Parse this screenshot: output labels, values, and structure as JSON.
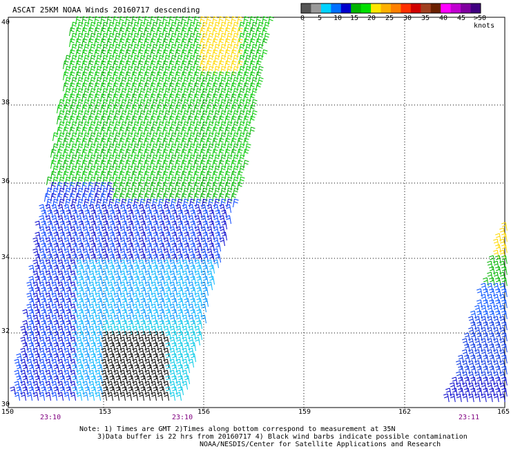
{
  "title": "ASCAT 25KM NOAA Winds 20160717 descending",
  "legend": {
    "labels": [
      "0",
      "5",
      "10",
      "15",
      "20",
      "25",
      "30",
      "35",
      "40",
      "45",
      ">50 knots"
    ],
    "colors": [
      "#555555",
      "#9a9a9a",
      "#00d2ff",
      "#0070ff",
      "#0000cc",
      "#00b400",
      "#00e000",
      "#ffe600",
      "#ffb000",
      "#ff8000",
      "#ff3000",
      "#d00000",
      "#a04020",
      "#6a2000",
      "#ff00ff",
      "#c000d0",
      "#8000a0",
      "#400080"
    ]
  },
  "axes": {
    "lat_labels": [
      "40",
      "38",
      "36",
      "34",
      "32",
      "30"
    ],
    "lon_labels": [
      "150",
      "153",
      "156",
      "159",
      "162",
      "165"
    ]
  },
  "times": [
    "23:10",
    "23:10",
    "23:11"
  ],
  "notes": {
    "line1": "Note: 1) Times are GMT 2)Times along bottom correspond to measurement at 35N",
    "line2": "3)Data buffer is 22 hrs from 20160717 4) Black wind barbs indicate possible contamination",
    "line3": "NOAA/NESDIS/Center for Satellite Applications and Research"
  }
}
